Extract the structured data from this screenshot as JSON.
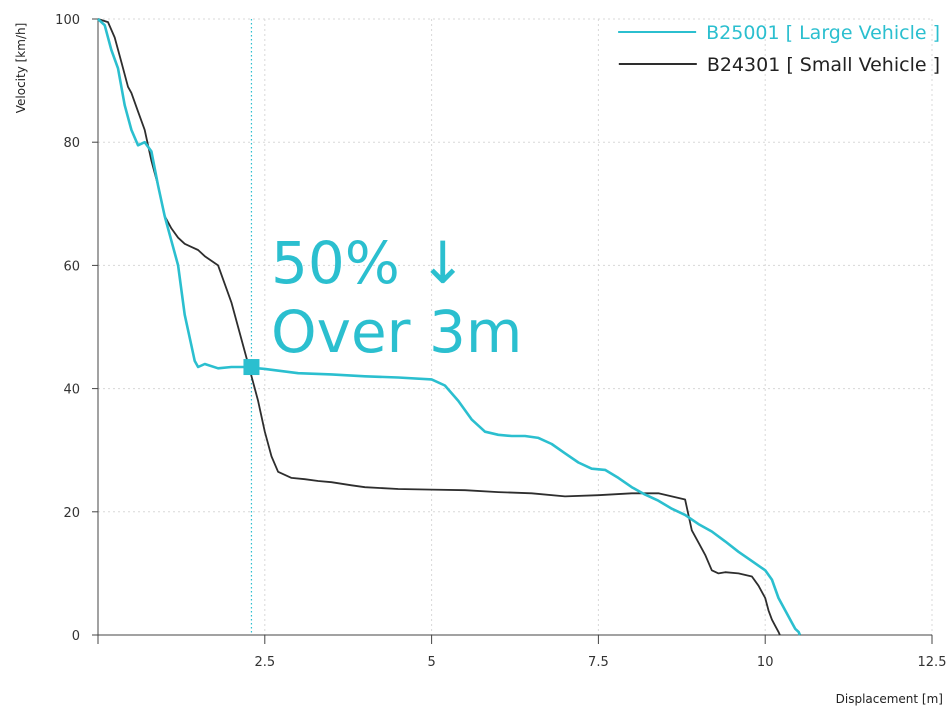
{
  "chart_data": {
    "type": "line",
    "xlabel": "Displacement [m]",
    "ylabel": "Velocity [km/h]",
    "xlim": [
      0,
      12.5
    ],
    "ylim": [
      0,
      100
    ],
    "x_ticks": [
      2.5,
      5,
      7.5,
      10,
      12.5
    ],
    "x_tick_labels": [
      "2.5",
      "5",
      "7.5",
      "10",
      "12.5"
    ],
    "y_ticks": [
      0,
      20,
      40,
      60,
      80,
      100
    ],
    "y_tick_labels": [
      "0",
      "20",
      "40",
      "60",
      "80",
      "100"
    ],
    "grid": "dotted",
    "legend_position": "top-right",
    "colors": {
      "large": "#2bbfcf",
      "small": "#2e2e2e",
      "grid": "#d8d8d8",
      "axis": "#444444"
    },
    "annotation": {
      "lines": [
        "50% ↓",
        "Over 3m"
      ],
      "marker_x": 2.3,
      "marker_y": 43.5
    },
    "series": [
      {
        "name": "B25001 [ Large Vehicle ]",
        "color": "#2bbfcf",
        "x": [
          0,
          0.1,
          0.2,
          0.3,
          0.4,
          0.5,
          0.6,
          0.7,
          0.8,
          0.9,
          1.0,
          1.1,
          1.2,
          1.3,
          1.4,
          1.45,
          1.5,
          1.6,
          1.8,
          2.0,
          2.2,
          2.3,
          2.5,
          3.0,
          3.5,
          4.0,
          4.5,
          5.0,
          5.2,
          5.4,
          5.6,
          5.8,
          6.0,
          6.2,
          6.4,
          6.6,
          6.8,
          7.0,
          7.2,
          7.4,
          7.6,
          7.8,
          8.0,
          8.2,
          8.4,
          8.6,
          8.8,
          9.0,
          9.2,
          9.4,
          9.6,
          9.8,
          10.0,
          10.1,
          10.2,
          10.3,
          10.4,
          10.45,
          10.5,
          10.52
        ],
        "y": [
          100,
          99,
          95,
          92,
          86,
          82,
          79.5,
          80,
          78.5,
          73,
          68,
          64,
          60,
          52,
          47,
          44.5,
          43.5,
          44,
          43.3,
          43.5,
          43.5,
          43.4,
          43.2,
          42.5,
          42.3,
          42,
          41.8,
          41.5,
          40.5,
          38,
          35,
          33,
          32.5,
          32.3,
          32.3,
          32,
          31,
          29.5,
          28,
          27,
          26.8,
          25.5,
          24,
          22.8,
          21.8,
          20.5,
          19.5,
          18,
          16.8,
          15.2,
          13.5,
          12,
          10.5,
          9,
          6,
          4,
          2,
          1,
          0.5,
          0
        ]
      },
      {
        "name": "B24301 [ Small Vehicle ]",
        "color": "#2e2e2e",
        "x": [
          0,
          0.15,
          0.25,
          0.35,
          0.45,
          0.5,
          0.6,
          0.7,
          0.8,
          0.9,
          1.0,
          1.1,
          1.2,
          1.3,
          1.4,
          1.5,
          1.6,
          1.8,
          2.0,
          2.1,
          2.2,
          2.3,
          2.4,
          2.5,
          2.6,
          2.7,
          2.9,
          3.1,
          3.3,
          3.5,
          3.8,
          4.0,
          4.5,
          5.0,
          5.5,
          6.0,
          6.5,
          7.0,
          7.5,
          8.0,
          8.4,
          8.8,
          8.9,
          9.0,
          9.1,
          9.2,
          9.3,
          9.4,
          9.6,
          9.8,
          9.9,
          10.0,
          10.05,
          10.1,
          10.15,
          10.2,
          10.22
        ],
        "y": [
          100,
          99.5,
          97,
          93,
          89,
          88,
          85,
          82,
          77,
          73,
          68,
          66,
          64.5,
          63.5,
          63,
          62.5,
          61.5,
          60,
          54,
          50,
          46,
          42,
          38,
          33,
          29,
          26.5,
          25.5,
          25.3,
          25,
          24.8,
          24.3,
          24,
          23.7,
          23.6,
          23.5,
          23.2,
          23,
          22.5,
          22.7,
          23,
          23,
          22,
          17,
          15,
          13,
          10.5,
          10,
          10.2,
          10,
          9.5,
          8,
          6,
          4,
          2.5,
          1.5,
          0.5,
          0
        ]
      }
    ]
  }
}
